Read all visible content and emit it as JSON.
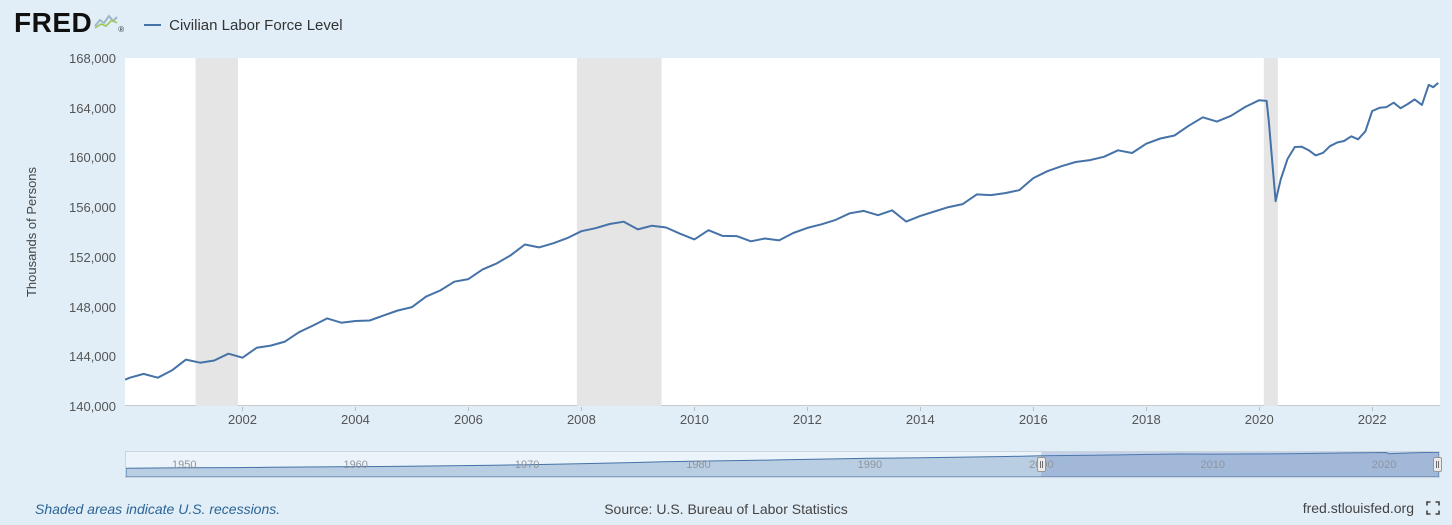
{
  "header": {
    "logo_text": "FRED",
    "reg_mark": "®",
    "legend": {
      "label": "Civilian Labor Force Level",
      "line_color": "#4572a7"
    }
  },
  "colors": {
    "background": "#e1eef7",
    "plot_background": "#ffffff",
    "series_line": "#4572a7",
    "recession_band": "#e5e5e5",
    "navigator_area_fill": "#aec4dd",
    "navigator_mask_fill": "rgba(102,133,194,0.30)",
    "tick_text": "#555555"
  },
  "chart_data": {
    "type": "line",
    "title": "",
    "series_name": "Civilian Labor Force Level",
    "ylabel": "Thousands of Persons",
    "x_range": [
      1999.92,
      2023.2
    ],
    "y_range": [
      140000,
      168000
    ],
    "y_ticks": [
      140000,
      144000,
      148000,
      152000,
      156000,
      160000,
      164000,
      168000
    ],
    "x_ticks": [
      2002,
      2004,
      2006,
      2008,
      2010,
      2012,
      2014,
      2016,
      2018,
      2020,
      2022
    ],
    "grid": false,
    "legend_position": "top-left",
    "recession_bands": [
      [
        2001.17,
        2001.92
      ],
      [
        2007.92,
        2009.42
      ],
      [
        2020.08,
        2020.33
      ]
    ],
    "points": [
      [
        1999.92,
        142120
      ],
      [
        2000.0,
        142267
      ],
      [
        2000.25,
        142583
      ],
      [
        2000.5,
        142278
      ],
      [
        2000.75,
        142861
      ],
      [
        2001.0,
        143734
      ],
      [
        2001.25,
        143480
      ],
      [
        2001.5,
        143658
      ],
      [
        2001.75,
        144210
      ],
      [
        2002.0,
        143883
      ],
      [
        2002.25,
        144683
      ],
      [
        2002.5,
        144863
      ],
      [
        2002.75,
        145181
      ],
      [
        2003.0,
        145937
      ],
      [
        2003.25,
        146473
      ],
      [
        2003.5,
        147050
      ],
      [
        2003.75,
        146700
      ],
      [
        2004.0,
        146842
      ],
      [
        2004.25,
        146878
      ],
      [
        2004.5,
        147288
      ],
      [
        2004.75,
        147683
      ],
      [
        2005.0,
        147956
      ],
      [
        2005.25,
        148803
      ],
      [
        2005.5,
        149297
      ],
      [
        2005.75,
        150001
      ],
      [
        2006.0,
        150214
      ],
      [
        2006.25,
        150991
      ],
      [
        2006.5,
        151473
      ],
      [
        2006.75,
        152137
      ],
      [
        2007.0,
        152998
      ],
      [
        2007.25,
        152762
      ],
      [
        2007.5,
        153091
      ],
      [
        2007.75,
        153506
      ],
      [
        2008.0,
        154063
      ],
      [
        2008.25,
        154303
      ],
      [
        2008.5,
        154646
      ],
      [
        2008.75,
        154825
      ],
      [
        2009.0,
        154210
      ],
      [
        2009.25,
        154504
      ],
      [
        2009.5,
        154365
      ],
      [
        2009.75,
        153854
      ],
      [
        2010.0,
        153404
      ],
      [
        2010.25,
        154144
      ],
      [
        2010.5,
        153684
      ],
      [
        2010.75,
        153672
      ],
      [
        2011.0,
        153250
      ],
      [
        2011.25,
        153478
      ],
      [
        2011.5,
        153327
      ],
      [
        2011.75,
        153921
      ],
      [
        2012.0,
        154328
      ],
      [
        2012.25,
        154622
      ],
      [
        2012.5,
        154971
      ],
      [
        2012.75,
        155507
      ],
      [
        2013.0,
        155699
      ],
      [
        2013.25,
        155348
      ],
      [
        2013.5,
        155749
      ],
      [
        2013.75,
        154839
      ],
      [
        2014.0,
        155295
      ],
      [
        2014.25,
        155653
      ],
      [
        2014.5,
        156000
      ],
      [
        2014.75,
        156243
      ],
      [
        2015.0,
        157025
      ],
      [
        2015.25,
        156969
      ],
      [
        2015.5,
        157131
      ],
      [
        2015.75,
        157367
      ],
      [
        2016.0,
        158335
      ],
      [
        2016.25,
        158889
      ],
      [
        2016.5,
        159295
      ],
      [
        2016.75,
        159634
      ],
      [
        2017.0,
        159787
      ],
      [
        2017.25,
        160048
      ],
      [
        2017.5,
        160571
      ],
      [
        2017.75,
        160355
      ],
      [
        2018.0,
        161107
      ],
      [
        2018.25,
        161527
      ],
      [
        2018.5,
        161768
      ],
      [
        2018.75,
        162548
      ],
      [
        2019.0,
        163229
      ],
      [
        2019.25,
        162884
      ],
      [
        2019.5,
        163351
      ],
      [
        2019.75,
        164058
      ],
      [
        2020.0,
        164606
      ],
      [
        2020.13,
        164546
      ],
      [
        2020.17,
        162913
      ],
      [
        2020.29,
        156481
      ],
      [
        2020.38,
        158227
      ],
      [
        2020.5,
        159870
      ],
      [
        2020.63,
        160838
      ],
      [
        2020.75,
        160867
      ],
      [
        2020.88,
        160567
      ],
      [
        2021.0,
        160161
      ],
      [
        2021.13,
        160372
      ],
      [
        2021.25,
        160901
      ],
      [
        2021.38,
        161200
      ],
      [
        2021.5,
        161320
      ],
      [
        2021.63,
        161700
      ],
      [
        2021.75,
        161458
      ],
      [
        2021.88,
        162100
      ],
      [
        2022.0,
        163732
      ],
      [
        2022.13,
        163991
      ],
      [
        2022.25,
        164046
      ],
      [
        2022.38,
        164400
      ],
      [
        2022.5,
        163964
      ],
      [
        2022.63,
        164300
      ],
      [
        2022.75,
        164667
      ],
      [
        2022.88,
        164224
      ],
      [
        2023.0,
        165832
      ],
      [
        2023.08,
        165650
      ],
      [
        2023.17,
        166000
      ]
    ]
  },
  "navigator": {
    "x_range": [
      1946.6,
      2023.2
    ],
    "y_max": 168000,
    "x_ticks": [
      1950,
      1960,
      1970,
      1980,
      1990,
      2000,
      2010,
      2020
    ],
    "selected_range": [
      2000,
      2023.2
    ],
    "area_points": [
      [
        1946.6,
        58500
      ],
      [
        1950,
        62208
      ],
      [
        1953,
        63015
      ],
      [
        1955,
        65023
      ],
      [
        1958,
        67639
      ],
      [
        1960,
        69628
      ],
      [
        1963,
        71833
      ],
      [
        1965,
        74455
      ],
      [
        1968,
        78737
      ],
      [
        1970,
        82771
      ],
      [
        1973,
        89429
      ],
      [
        1975,
        93775
      ],
      [
        1978,
        102251
      ],
      [
        1980,
        106940
      ],
      [
        1983,
        111550
      ],
      [
        1985,
        115461
      ],
      [
        1988,
        121669
      ],
      [
        1990,
        125840
      ],
      [
        1993,
        129200
      ],
      [
        1995,
        132304
      ],
      [
        1998,
        137673
      ],
      [
        2000,
        142583
      ],
      [
        2003,
        146510
      ],
      [
        2005,
        149320
      ],
      [
        2008,
        154300
      ],
      [
        2010,
        153889
      ],
      [
        2013,
        155389
      ],
      [
        2015,
        157130
      ],
      [
        2018,
        161753
      ],
      [
        2020.1,
        164546
      ],
      [
        2020.3,
        156481
      ],
      [
        2021,
        160161
      ],
      [
        2022,
        163732
      ],
      [
        2023.2,
        165950
      ]
    ]
  },
  "footer": {
    "recession_note": "Shaded areas indicate U.S. recessions.",
    "source": "Source: U.S. Bureau of Labor Statistics",
    "site": "fred.stlouisfed.org"
  }
}
